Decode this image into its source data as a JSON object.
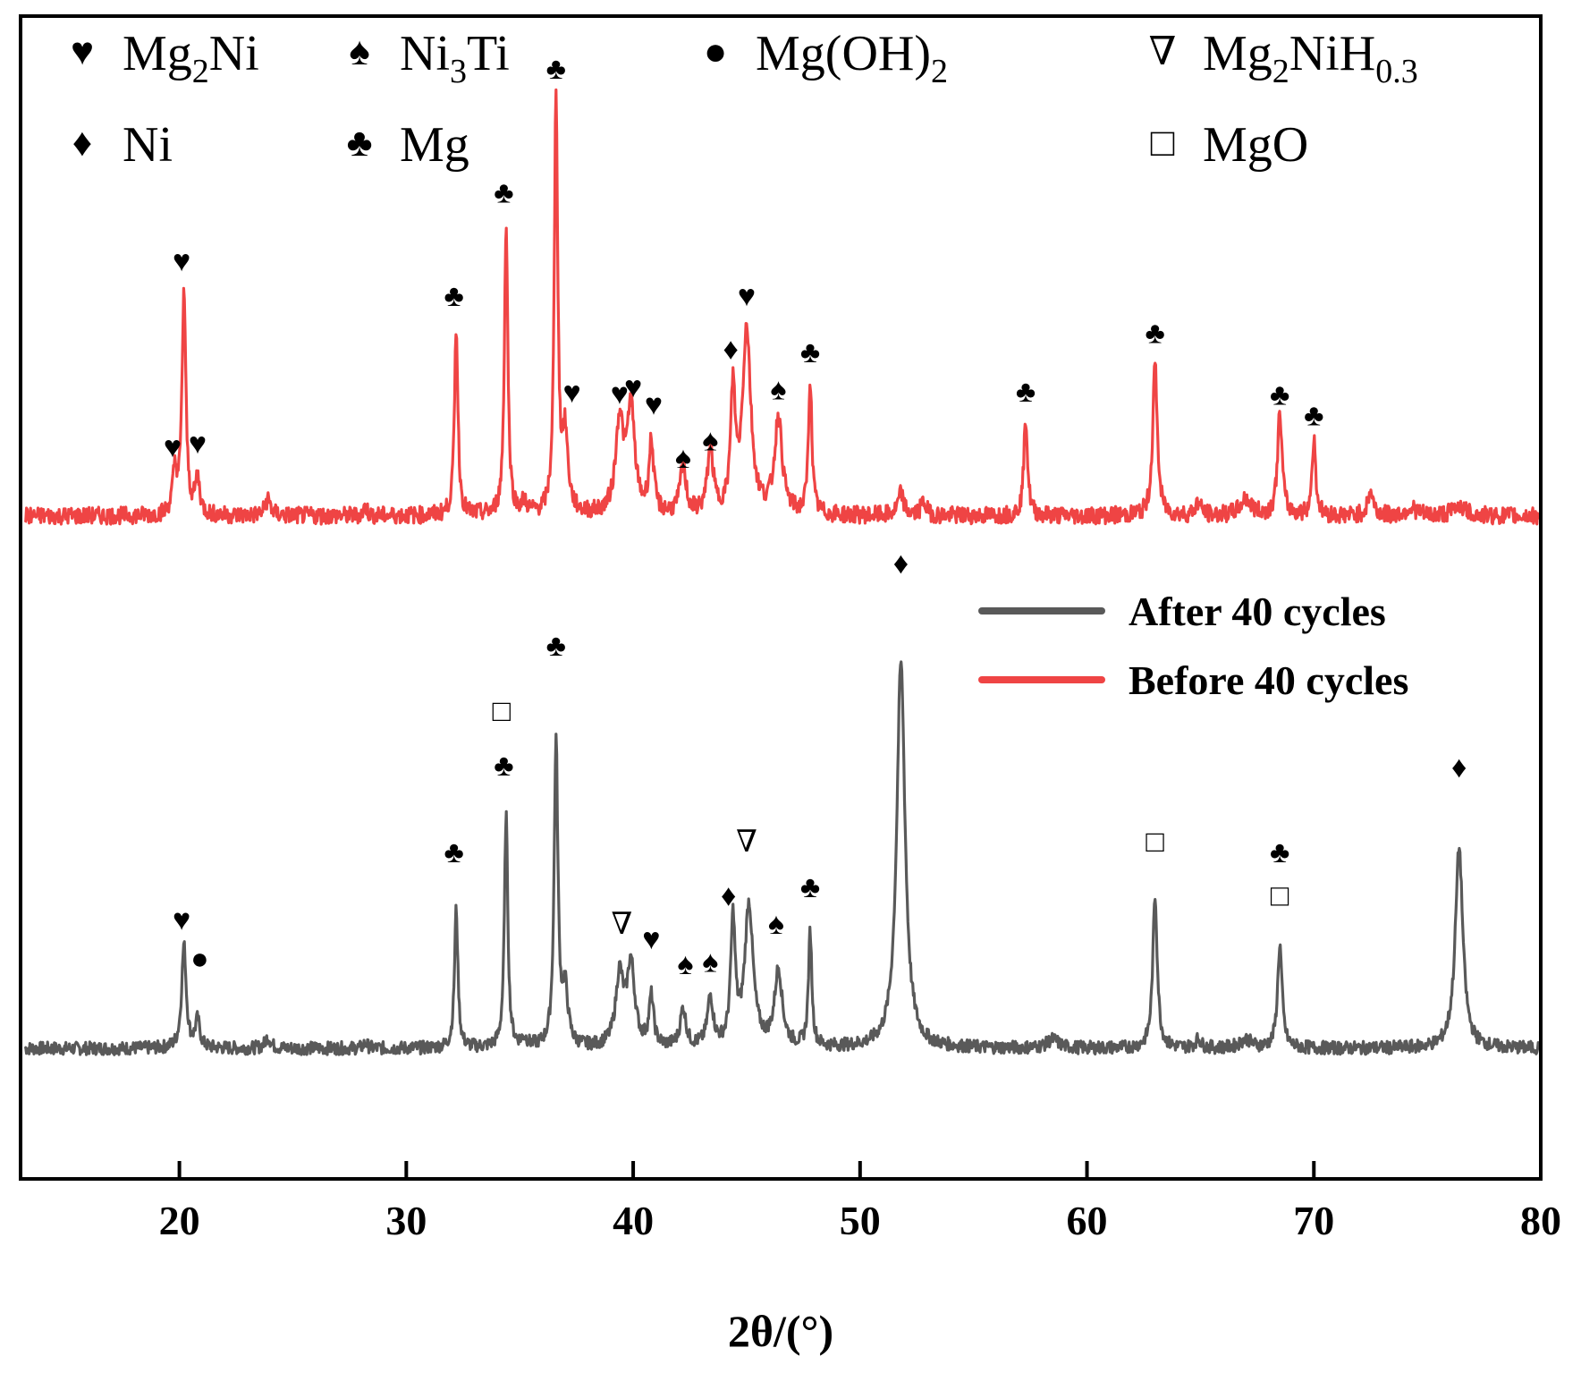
{
  "chart_data": {
    "type": "line",
    "title": "",
    "xlabel": "2θ/(°)",
    "ylabel": "",
    "xlim": [
      13,
      80
    ],
    "xticks": [
      20,
      30,
      40,
      50,
      60,
      70,
      80
    ],
    "yaxis": "stacked intensity (a.u.), no tick labels",
    "legend_position": "middle-right",
    "colors": {
      "after": "#595959",
      "before": "#ef4444",
      "axis": "#000000"
    },
    "phase_legend": [
      {
        "name": "Mg2Ni",
        "sym": "♥",
        "base": "Mg",
        "sub1": "2",
        "mid": "Ni",
        "sub2": "",
        "tail": ""
      },
      {
        "name": "Ni3Ti",
        "sym": "♠",
        "base": "Ni",
        "sub1": "3",
        "mid": "Ti",
        "sub2": "",
        "tail": ""
      },
      {
        "name": "Mg(OH)2",
        "sym": "●",
        "base": "Mg(OH)",
        "sub1": "2",
        "mid": "",
        "sub2": "",
        "tail": ""
      },
      {
        "name": "Mg2NiH0.3",
        "sym": "∇",
        "base": "Mg",
        "sub1": "2",
        "mid": "NiH",
        "sub2": "0.3",
        "tail": ""
      },
      {
        "name": "Ni",
        "sym": "♦",
        "base": "Ni",
        "sub1": "",
        "mid": "",
        "sub2": "",
        "tail": ""
      },
      {
        "name": "Mg",
        "sym": "♣",
        "base": "Mg",
        "sub1": "",
        "mid": "",
        "sub2": "",
        "tail": ""
      },
      {
        "name": "MgO",
        "sym": "□",
        "base": "MgO",
        "sub1": "",
        "mid": "",
        "sub2": "",
        "tail": ""
      }
    ],
    "series": [
      {
        "name": "After 40 cycles",
        "color": "#595959",
        "offset": 0,
        "noise": 0.6,
        "peaks": [
          {
            "x": 20.2,
            "h": 9.5,
            "w": 0.12
          },
          {
            "x": 20.8,
            "h": 2.5,
            "w": 0.12
          },
          {
            "x": 23.9,
            "h": 1.0,
            "w": 0.15
          },
          {
            "x": 28.2,
            "h": 0.5,
            "w": 0.1
          },
          {
            "x": 32.2,
            "h": 12.8,
            "w": 0.09
          },
          {
            "x": 34.4,
            "h": 21.5,
            "w": 0.09
          },
          {
            "x": 35.2,
            "h": 0.7,
            "w": 0.15
          },
          {
            "x": 36.6,
            "h": 28.0,
            "w": 0.1
          },
          {
            "x": 37.0,
            "h": 5.0,
            "w": 0.15
          },
          {
            "x": 39.4,
            "h": 6.5,
            "w": 0.2
          },
          {
            "x": 39.9,
            "h": 7.5,
            "w": 0.2
          },
          {
            "x": 40.8,
            "h": 4.5,
            "w": 0.12
          },
          {
            "x": 42.2,
            "h": 3.5,
            "w": 0.15
          },
          {
            "x": 43.4,
            "h": 4.5,
            "w": 0.15
          },
          {
            "x": 44.4,
            "h": 11.5,
            "w": 0.12
          },
          {
            "x": 45.1,
            "h": 13.0,
            "w": 0.22
          },
          {
            "x": 46.4,
            "h": 7.0,
            "w": 0.2
          },
          {
            "x": 47.8,
            "h": 10.5,
            "w": 0.09
          },
          {
            "x": 51.8,
            "h": 35.5,
            "w": 0.22
          },
          {
            "x": 58.5,
            "h": 0.8,
            "w": 0.3
          },
          {
            "x": 63.0,
            "h": 14.0,
            "w": 0.12
          },
          {
            "x": 64.9,
            "h": 0.8,
            "w": 0.15
          },
          {
            "x": 67.0,
            "h": 0.8,
            "w": 0.3
          },
          {
            "x": 68.5,
            "h": 9.5,
            "w": 0.12
          },
          {
            "x": 76.4,
            "h": 18.5,
            "w": 0.2
          }
        ]
      },
      {
        "name": "Before 40 cycles",
        "color": "#ef4444",
        "offset": 49,
        "noise": 0.8,
        "peaks": [
          {
            "x": 19.8,
            "h": 3.8,
            "w": 0.12
          },
          {
            "x": 20.2,
            "h": 20.5,
            "w": 0.1
          },
          {
            "x": 20.8,
            "h": 3.3,
            "w": 0.12
          },
          {
            "x": 23.9,
            "h": 1.5,
            "w": 0.15
          },
          {
            "x": 28.2,
            "h": 0.8,
            "w": 0.1
          },
          {
            "x": 32.2,
            "h": 17.5,
            "w": 0.09
          },
          {
            "x": 34.4,
            "h": 27.0,
            "w": 0.09
          },
          {
            "x": 35.2,
            "h": 1.0,
            "w": 0.15
          },
          {
            "x": 36.6,
            "h": 38.5,
            "w": 0.09
          },
          {
            "x": 37.0,
            "h": 7.0,
            "w": 0.15
          },
          {
            "x": 39.4,
            "h": 8.5,
            "w": 0.2
          },
          {
            "x": 39.9,
            "h": 9.5,
            "w": 0.2
          },
          {
            "x": 40.8,
            "h": 6.5,
            "w": 0.12
          },
          {
            "x": 42.2,
            "h": 4.5,
            "w": 0.15
          },
          {
            "x": 43.4,
            "h": 6.0,
            "w": 0.15
          },
          {
            "x": 44.4,
            "h": 11.0,
            "w": 0.12
          },
          {
            "x": 45.0,
            "h": 17.0,
            "w": 0.22
          },
          {
            "x": 46.4,
            "h": 8.8,
            "w": 0.2
          },
          {
            "x": 47.8,
            "h": 12.5,
            "w": 0.09
          },
          {
            "x": 51.8,
            "h": 2.0,
            "w": 0.15
          },
          {
            "x": 52.8,
            "h": 1.2,
            "w": 0.15
          },
          {
            "x": 57.3,
            "h": 9.0,
            "w": 0.1
          },
          {
            "x": 63.0,
            "h": 14.0,
            "w": 0.12
          },
          {
            "x": 64.9,
            "h": 1.2,
            "w": 0.15
          },
          {
            "x": 67.0,
            "h": 1.5,
            "w": 0.3
          },
          {
            "x": 68.5,
            "h": 9.5,
            "w": 0.12
          },
          {
            "x": 70.0,
            "h": 7.0,
            "w": 0.1
          },
          {
            "x": 72.5,
            "h": 2.2,
            "w": 0.15
          },
          {
            "x": 74.3,
            "h": 0.7,
            "w": 0.3
          },
          {
            "x": 76.4,
            "h": 1.0,
            "w": 0.3
          }
        ]
      }
    ],
    "annotations": [
      {
        "sym": "♥",
        "x": 19.7,
        "y": 55.3
      },
      {
        "sym": "♥",
        "x": 20.1,
        "y": 72.4
      },
      {
        "sym": "♥",
        "x": 20.8,
        "y": 55.6
      },
      {
        "sym": "♣",
        "x": 32.1,
        "y": 69.2
      },
      {
        "sym": "♣",
        "x": 34.3,
        "y": 78.7
      },
      {
        "sym": "♣",
        "x": 36.6,
        "y": 90.1
      },
      {
        "sym": "♥",
        "x": 37.3,
        "y": 60.3
      },
      {
        "sym": "♥",
        "x": 39.4,
        "y": 60.2
      },
      {
        "sym": "♥",
        "x": 40.0,
        "y": 60.8
      },
      {
        "sym": "♥",
        "x": 40.9,
        "y": 59.2
      },
      {
        "sym": "♠",
        "x": 42.2,
        "y": 54.3
      },
      {
        "sym": "♠",
        "x": 43.4,
        "y": 55.9
      },
      {
        "sym": "♦",
        "x": 44.3,
        "y": 64.3
      },
      {
        "sym": "♥",
        "x": 45.0,
        "y": 69.2
      },
      {
        "sym": "♠",
        "x": 46.4,
        "y": 60.6
      },
      {
        "sym": "♣",
        "x": 47.8,
        "y": 64.0
      },
      {
        "sym": "♣",
        "x": 57.3,
        "y": 60.4
      },
      {
        "sym": "♣",
        "x": 63.0,
        "y": 65.8
      },
      {
        "sym": "♣",
        "x": 68.5,
        "y": 60.1
      },
      {
        "sym": "♣",
        "x": 70.0,
        "y": 58.2
      },
      {
        "sym": "♥",
        "x": 20.1,
        "y": 11.8
      },
      {
        "sym": "●",
        "x": 20.9,
        "y": 8.2
      },
      {
        "sym": "♣",
        "x": 32.1,
        "y": 18.0
      },
      {
        "sym": "□",
        "x": 34.2,
        "y": 31.0
      },
      {
        "sym": "♣",
        "x": 34.3,
        "y": 26.0
      },
      {
        "sym": "♣",
        "x": 36.6,
        "y": 37.0
      },
      {
        "sym": "∇",
        "x": 39.5,
        "y": 11.4
      },
      {
        "sym": "♥",
        "x": 40.8,
        "y": 10.0
      },
      {
        "sym": "♠",
        "x": 42.3,
        "y": 7.7
      },
      {
        "sym": "♠",
        "x": 43.4,
        "y": 7.9
      },
      {
        "sym": "♦",
        "x": 44.2,
        "y": 14.0
      },
      {
        "sym": "∇",
        "x": 45.0,
        "y": 19.0
      },
      {
        "sym": "♠",
        "x": 46.3,
        "y": 11.4
      },
      {
        "sym": "♣",
        "x": 47.8,
        "y": 14.8
      },
      {
        "sym": "♦",
        "x": 51.8,
        "y": 44.6
      },
      {
        "sym": "□",
        "x": 63.0,
        "y": 19.0
      },
      {
        "sym": "♣",
        "x": 68.5,
        "y": 18.0
      },
      {
        "sym": "□",
        "x": 68.5,
        "y": 14.0
      },
      {
        "sym": "♦",
        "x": 76.4,
        "y": 25.8
      }
    ],
    "ylim": [
      -12,
      95
    ]
  }
}
